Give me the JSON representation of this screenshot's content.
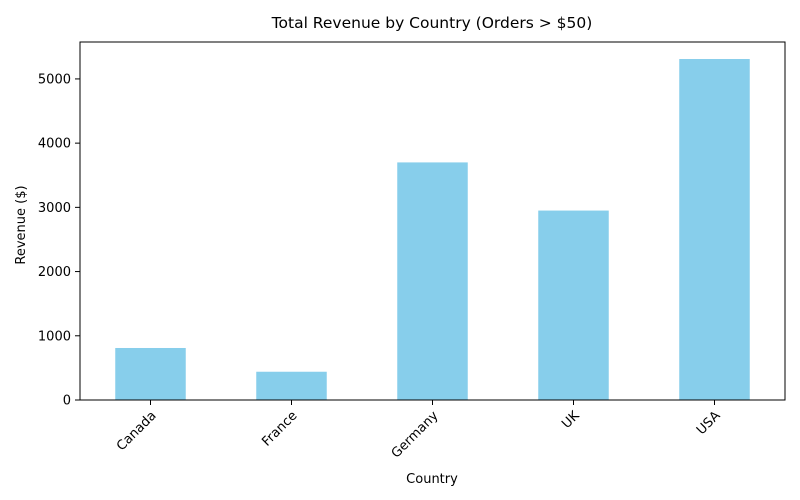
{
  "chart_data": {
    "type": "bar",
    "title": "Total Revenue by Country (Orders > $50)",
    "xlabel": "Country",
    "ylabel": "Revenue ($)",
    "categories": [
      "Canada",
      "France",
      "Germany",
      "UK",
      "USA"
    ],
    "values": [
      810,
      440,
      3700,
      2950,
      5310
    ],
    "ylim": [
      0,
      5575
    ],
    "yticks": [
      0,
      1000,
      2000,
      3000,
      4000,
      5000
    ],
    "grid": false,
    "bar_color": "#87CEEB"
  }
}
